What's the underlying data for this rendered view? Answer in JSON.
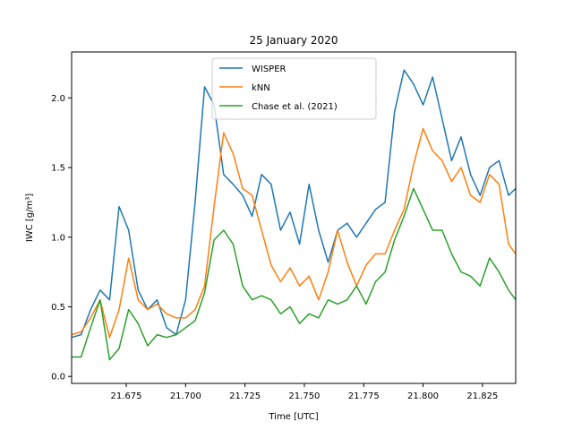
{
  "chart_data": {
    "type": "line",
    "title": "25 January 2020",
    "xlabel": "Time [UTC]",
    "ylabel": "IWC [g/m³]",
    "xlim": [
      21.652,
      21.839
    ],
    "ylim": [
      -0.05,
      2.33
    ],
    "xticks": [
      21.675,
      21.7,
      21.725,
      21.75,
      21.775,
      21.8,
      21.825
    ],
    "xtick_labels": [
      "21.675",
      "21.700",
      "21.725",
      "21.750",
      "21.775",
      "21.800",
      "21.825"
    ],
    "yticks": [
      0.0,
      0.5,
      1.0,
      1.5,
      2.0
    ],
    "ytick_labels": [
      "0.0",
      "0.5",
      "1.0",
      "1.5",
      "2.0"
    ],
    "grid": false,
    "legend_position": "top-center",
    "series": [
      {
        "name": "WISPER",
        "color": "#1f77b4",
        "x": [
          21.652,
          21.656,
          21.66,
          21.664,
          21.668,
          21.672,
          21.676,
          21.68,
          21.684,
          21.688,
          21.692,
          21.696,
          21.7,
          21.704,
          21.708,
          21.712,
          21.716,
          21.72,
          21.724,
          21.728,
          21.732,
          21.736,
          21.74,
          21.744,
          21.748,
          21.752,
          21.756,
          21.76,
          21.764,
          21.768,
          21.772,
          21.776,
          21.78,
          21.784,
          21.788,
          21.792,
          21.796,
          21.8,
          21.804,
          21.808,
          21.812,
          21.816,
          21.82,
          21.824,
          21.828,
          21.832,
          21.836,
          21.839
        ],
        "y": [
          0.28,
          0.3,
          0.48,
          0.62,
          0.55,
          1.22,
          1.05,
          0.62,
          0.48,
          0.55,
          0.35,
          0.3,
          0.55,
          1.25,
          2.08,
          1.95,
          1.45,
          1.38,
          1.3,
          1.15,
          1.45,
          1.38,
          1.05,
          1.18,
          0.95,
          1.38,
          1.05,
          0.82,
          1.05,
          1.1,
          1.0,
          1.1,
          1.2,
          1.25,
          1.9,
          2.2,
          2.1,
          1.95,
          2.15,
          1.85,
          1.55,
          1.72,
          1.45,
          1.3,
          1.5,
          1.55,
          1.3,
          1.35
        ]
      },
      {
        "name": "kNN",
        "color": "#ff7f0e",
        "x": [
          21.652,
          21.656,
          21.66,
          21.664,
          21.668,
          21.672,
          21.676,
          21.68,
          21.684,
          21.688,
          21.692,
          21.696,
          21.7,
          21.704,
          21.708,
          21.712,
          21.716,
          21.72,
          21.724,
          21.728,
          21.732,
          21.736,
          21.74,
          21.744,
          21.748,
          21.752,
          21.756,
          21.76,
          21.764,
          21.768,
          21.772,
          21.776,
          21.78,
          21.784,
          21.788,
          21.792,
          21.796,
          21.8,
          21.804,
          21.808,
          21.812,
          21.816,
          21.82,
          21.824,
          21.828,
          21.832,
          21.836,
          21.839
        ],
        "y": [
          0.3,
          0.32,
          0.42,
          0.55,
          0.28,
          0.48,
          0.85,
          0.55,
          0.48,
          0.52,
          0.45,
          0.42,
          0.42,
          0.48,
          0.65,
          1.22,
          1.75,
          1.6,
          1.35,
          1.3,
          1.05,
          0.8,
          0.68,
          0.78,
          0.65,
          0.72,
          0.55,
          0.75,
          1.05,
          0.82,
          0.65,
          0.8,
          0.88,
          0.88,
          1.05,
          1.2,
          1.52,
          1.78,
          1.62,
          1.55,
          1.4,
          1.5,
          1.3,
          1.25,
          1.45,
          1.38,
          0.95,
          0.88
        ]
      },
      {
        "name": "Chase et al. (2021)",
        "color": "#2ca02c",
        "x": [
          21.652,
          21.656,
          21.66,
          21.664,
          21.668,
          21.672,
          21.676,
          21.68,
          21.684,
          21.688,
          21.692,
          21.696,
          21.7,
          21.704,
          21.708,
          21.712,
          21.716,
          21.72,
          21.724,
          21.728,
          21.732,
          21.736,
          21.74,
          21.744,
          21.748,
          21.752,
          21.756,
          21.76,
          21.764,
          21.768,
          21.772,
          21.776,
          21.78,
          21.784,
          21.788,
          21.792,
          21.796,
          21.8,
          21.804,
          21.808,
          21.812,
          21.816,
          21.82,
          21.824,
          21.828,
          21.832,
          21.836,
          21.839
        ],
        "y": [
          0.14,
          0.14,
          0.35,
          0.55,
          0.12,
          0.2,
          0.48,
          0.38,
          0.22,
          0.3,
          0.28,
          0.3,
          0.35,
          0.4,
          0.6,
          0.98,
          1.05,
          0.95,
          0.65,
          0.55,
          0.58,
          0.55,
          0.45,
          0.5,
          0.38,
          0.45,
          0.42,
          0.55,
          0.52,
          0.55,
          0.65,
          0.52,
          0.68,
          0.75,
          0.98,
          1.15,
          1.35,
          1.2,
          1.05,
          1.05,
          0.88,
          0.75,
          0.72,
          0.65,
          0.85,
          0.75,
          0.62,
          0.55
        ]
      }
    ]
  }
}
